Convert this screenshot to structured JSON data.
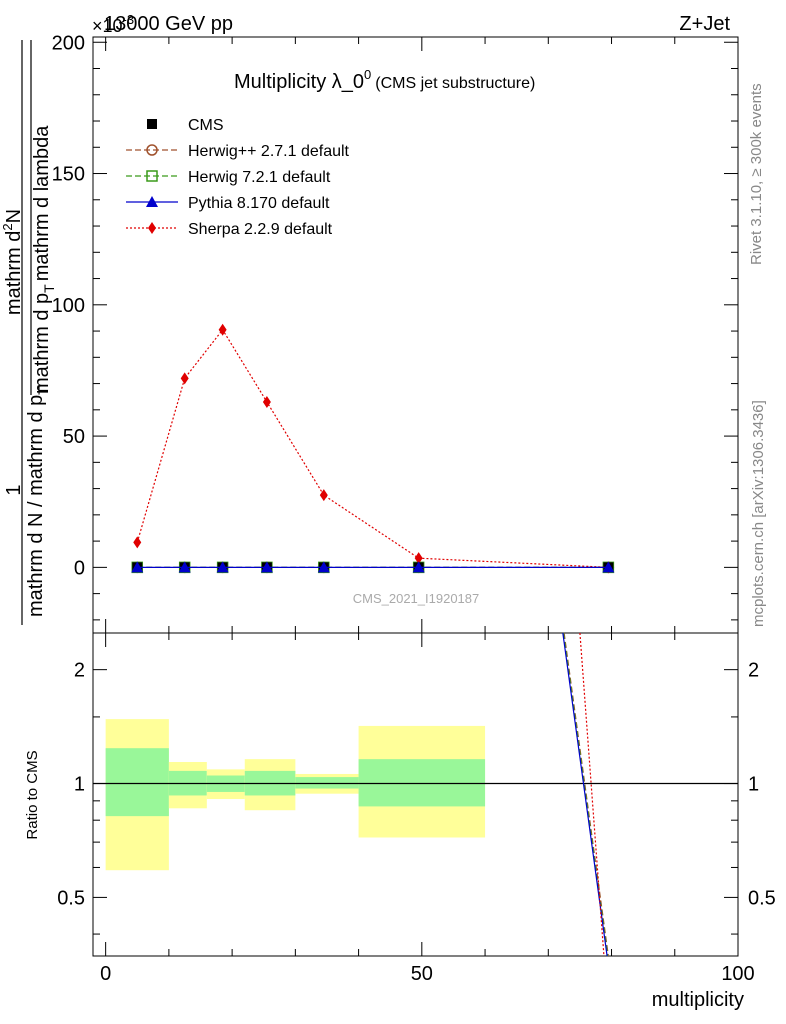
{
  "header": {
    "left": "13000 GeV pp",
    "right": "Z+Jet",
    "exponent_prefix": "×10",
    "exponent_power": "-3"
  },
  "title": {
    "main": "Multiplicity λ_0",
    "superscript": "0",
    "sub": "(CMS jet substructure)"
  },
  "ylabel_top": {
    "numerator": "1",
    "denominator": "mathrm d N / mathrm d p",
    "denominator_sub": "T",
    "rhs_numerator": "mathrm d",
    "rhs_numerator_sup": "2",
    "rhs_numerator_tail": "N",
    "rhs_denominator": "mathrm d p",
    "rhs_denominator_sub": "T",
    "rhs_denominator_tail": "mathrm d lambda"
  },
  "side_labels": {
    "rivet": "Rivet 3.1.10, ≥ 300k events",
    "mcplots": "mcplots.cern.ch [arXiv:1306.3436]"
  },
  "watermark": "CMS_2021_I1920187",
  "ratio_ylabel": "Ratio to CMS",
  "xlabel": "multiplicity",
  "colors": {
    "herwigpp": "#a0522d",
    "herwig7": "#3a9a1a",
    "pythia": "#0000cc",
    "sherpa": "#e00000",
    "band_inner": "#99f799",
    "band_outer": "#ffff99",
    "cms": "#000000"
  },
  "chart_data": [
    {
      "type": "line",
      "panel": "main",
      "title": "Multiplicity λ_0^0 (CMS jet substructure)",
      "ylabel": "1 / (mathrm d N / mathrm d p_T) · mathrm d^2N / (mathrm d p_T mathrm d lambda)",
      "xlim": [
        -2,
        100
      ],
      "ylim": [
        -25,
        202
      ],
      "y_scale_note": "×10^-3",
      "yticks": [
        0,
        50,
        100,
        150,
        200
      ],
      "ytick_labels": [
        "0",
        "50",
        "100",
        "150",
        "200"
      ],
      "legend_position": "top-left",
      "series": [
        {
          "name": "CMS",
          "style": "square-marker",
          "x": [
            5,
            12.5,
            18.5,
            25.5,
            34.5,
            49.5,
            79.5
          ],
          "values": [
            0,
            0,
            0,
            0,
            0,
            0,
            0
          ]
        },
        {
          "name": "Herwig++ 2.7.1 default",
          "style": "dashed-circle",
          "x": [
            5,
            12.5,
            18.5,
            25.5,
            34.5,
            49.5,
            79.5
          ],
          "values": [
            0,
            0,
            0,
            0,
            0,
            0,
            0
          ]
        },
        {
          "name": "Herwig 7.2.1 default",
          "style": "dashed-square",
          "x": [
            5,
            12.5,
            18.5,
            25.5,
            34.5,
            49.5,
            79.5
          ],
          "values": [
            0,
            0,
            0,
            0,
            0,
            0,
            0
          ]
        },
        {
          "name": "Pythia 8.170 default",
          "style": "solid-triangle",
          "x": [
            5,
            12.5,
            18.5,
            25.5,
            34.5,
            49.5,
            79.5
          ],
          "values": [
            0,
            0,
            0,
            0,
            0,
            0,
            0
          ]
        },
        {
          "name": "Sherpa 2.2.9 default",
          "style": "dotted-diamond",
          "x": [
            5,
            12.5,
            18.5,
            25.5,
            34.5,
            49.5,
            79.5
          ],
          "values": [
            9.5,
            72,
            90.5,
            63,
            27.5,
            3.5,
            0
          ]
        }
      ]
    },
    {
      "type": "line",
      "panel": "ratio",
      "ylabel": "Ratio to CMS",
      "xlabel": "multiplicity",
      "xlim": [
        -2,
        100
      ],
      "ylim": [
        0.35,
        2.5
      ],
      "xticks": [
        0,
        50,
        100
      ],
      "xtick_labels": [
        "0",
        "50",
        "100"
      ],
      "yticks": [
        0.5,
        1,
        2
      ],
      "ytick_labels": [
        "0.5",
        "1",
        "2"
      ],
      "reference_line": 1,
      "bands": [
        {
          "x0": 0,
          "x1": 10,
          "inner": [
            0.82,
            1.24
          ],
          "outer": [
            0.59,
            1.48
          ]
        },
        {
          "x0": 10,
          "x1": 16,
          "inner": [
            0.93,
            1.08
          ],
          "outer": [
            0.86,
            1.14
          ]
        },
        {
          "x0": 16,
          "x1": 22,
          "inner": [
            0.95,
            1.05
          ],
          "outer": [
            0.91,
            1.09
          ]
        },
        {
          "x0": 22,
          "x1": 30,
          "inner": [
            0.93,
            1.08
          ],
          "outer": [
            0.85,
            1.16
          ]
        },
        {
          "x0": 30,
          "x1": 40,
          "inner": [
            0.97,
            1.04
          ],
          "outer": [
            0.94,
            1.06
          ]
        },
        {
          "x0": 40,
          "x1": 60,
          "inner": [
            0.87,
            1.16
          ],
          "outer": [
            0.72,
            1.42
          ]
        }
      ],
      "series": [
        {
          "name": "Herwig++ 2.7.1 default",
          "x": [
            72.5,
            79.5
          ],
          "values": [
            2.5,
            0.35
          ]
        },
        {
          "name": "Herwig 7.2.1 default",
          "x": [
            72.4,
            79.4
          ],
          "values": [
            2.5,
            0.35
          ]
        },
        {
          "name": "Pythia 8.170 default",
          "x": [
            72.3,
            79.3
          ],
          "values": [
            2.5,
            0.35
          ]
        },
        {
          "name": "Sherpa 2.2.9 default",
          "x": [
            75,
            78.8
          ],
          "values": [
            2.5,
            0.35
          ]
        }
      ]
    }
  ]
}
